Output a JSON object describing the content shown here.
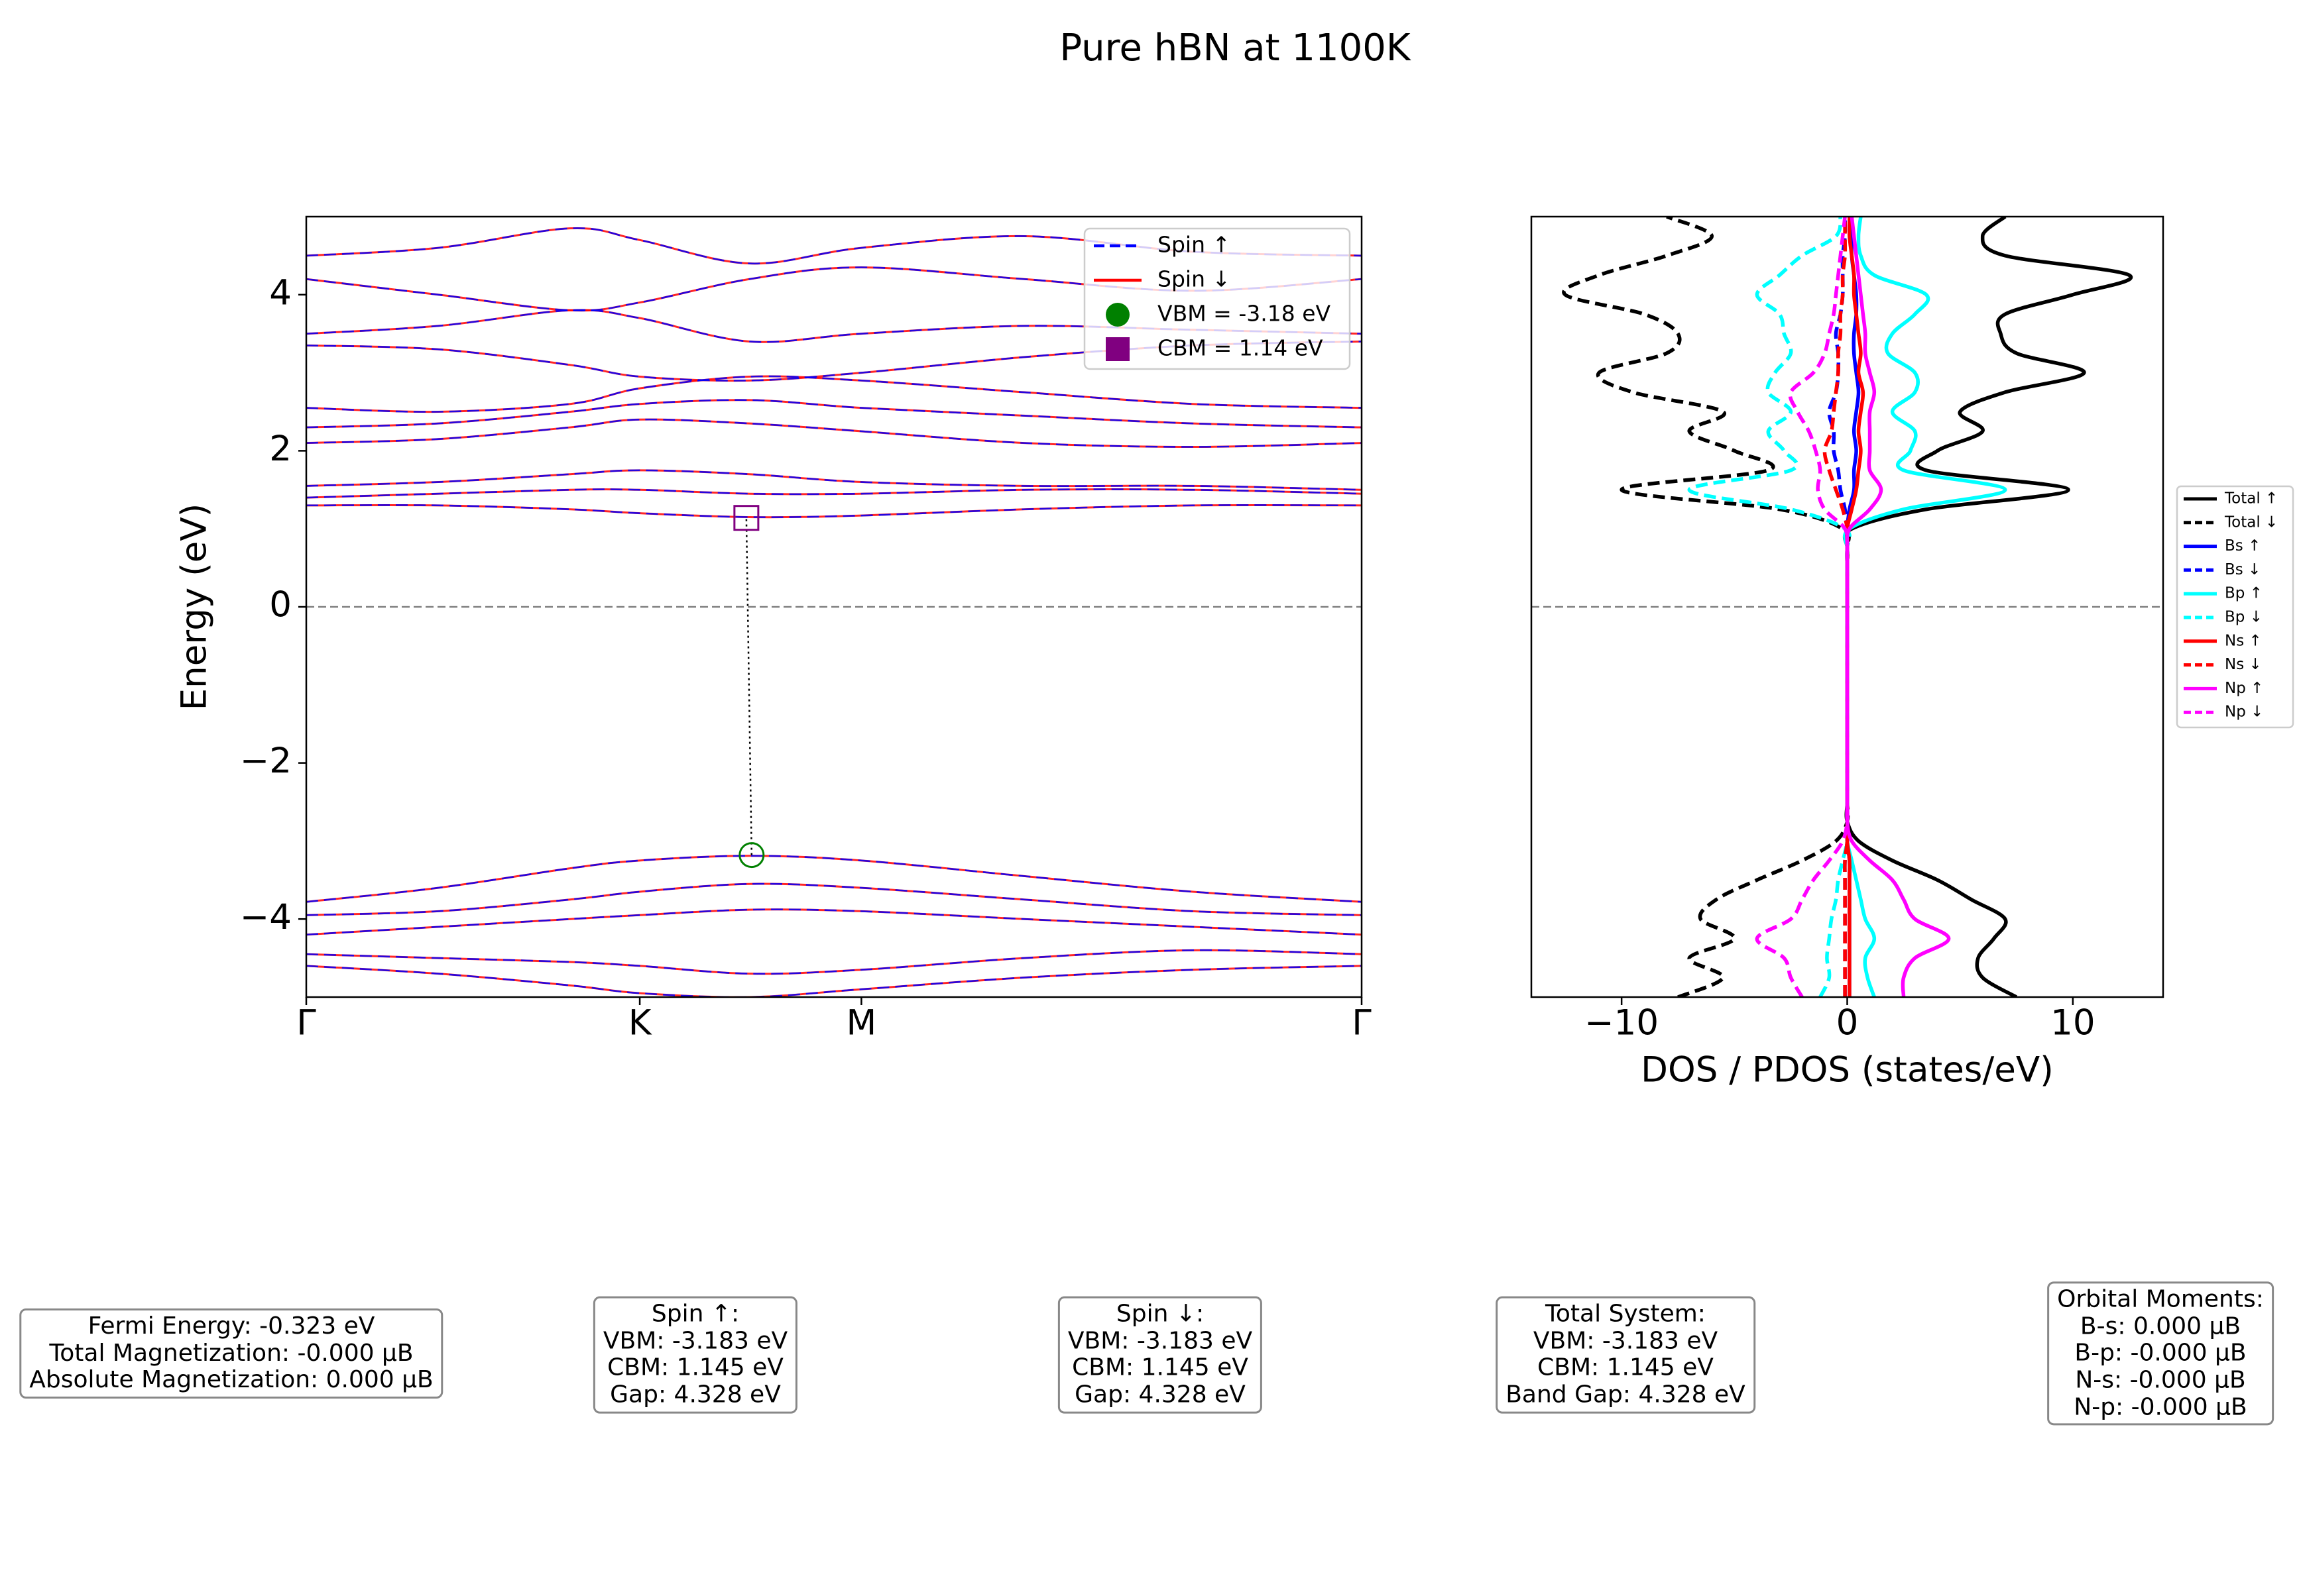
{
  "figure_title": "Pure hBN at 1100K",
  "chart_data": [
    {
      "type": "line",
      "ylabel": "Energy (eV)",
      "xlim": [
        0,
        1
      ],
      "ylim": [
        -5,
        5
      ],
      "xticks": [
        {
          "value": 0,
          "label": "Γ"
        },
        {
          "value": 0.316,
          "label": "K"
        },
        {
          "value": 0.526,
          "label": "M"
        },
        {
          "value": 1,
          "label": "Γ"
        }
      ],
      "yticks": [
        {
          "value": -4,
          "label": "−4"
        },
        {
          "value": -2,
          "label": "−2"
        },
        0,
        2,
        4
      ],
      "hline": 0,
      "legend": "upper right",
      "x": [
        0,
        0.125,
        0.25,
        0.316,
        0.42,
        0.526,
        0.68,
        0.84,
        1
      ],
      "series": [
        {
          "name": "Spin ↑",
          "color": "#0000ff",
          "style": "dashed",
          "values": [
            [
              -3.78,
              -3.6,
              -3.35,
              -3.25,
              -3.19,
              -3.25,
              -3.45,
              -3.65,
              -3.78
            ],
            [
              -3.95,
              -3.9,
              -3.75,
              -3.65,
              -3.55,
              -3.6,
              -3.75,
              -3.9,
              -3.95
            ],
            [
              -4.2,
              -4.1,
              -4.0,
              -3.95,
              -3.88,
              -3.9,
              -4.0,
              -4.1,
              -4.2
            ],
            [
              -4.45,
              -4.5,
              -4.55,
              -4.6,
              -4.7,
              -4.65,
              -4.5,
              -4.4,
              -4.45
            ],
            [
              -4.6,
              -4.7,
              -4.85,
              -4.95,
              -5.0,
              -4.9,
              -4.75,
              -4.65,
              -4.6
            ],
            [
              1.3,
              1.3,
              1.25,
              1.2,
              1.15,
              1.17,
              1.25,
              1.3,
              1.3
            ],
            [
              1.4,
              1.45,
              1.5,
              1.5,
              1.45,
              1.45,
              1.5,
              1.5,
              1.45
            ],
            [
              1.55,
              1.6,
              1.7,
              1.75,
              1.7,
              1.6,
              1.55,
              1.55,
              1.5
            ],
            [
              2.1,
              2.15,
              2.3,
              2.4,
              2.35,
              2.25,
              2.1,
              2.05,
              2.1
            ],
            [
              2.3,
              2.35,
              2.5,
              2.6,
              2.65,
              2.55,
              2.45,
              2.35,
              2.3
            ],
            [
              2.55,
              2.5,
              2.6,
              2.8,
              2.95,
              2.9,
              2.75,
              2.6,
              2.55
            ],
            [
              3.35,
              3.3,
              3.1,
              2.95,
              2.9,
              3.0,
              3.2,
              3.35,
              3.4
            ],
            [
              3.5,
              3.6,
              3.8,
              3.7,
              3.4,
              3.5,
              3.6,
              3.55,
              3.5
            ],
            [
              4.2,
              4.0,
              3.8,
              3.9,
              4.2,
              4.35,
              4.2,
              4.05,
              4.2
            ],
            [
              4.5,
              4.6,
              4.85,
              4.7,
              4.4,
              4.6,
              4.75,
              4.55,
              4.5
            ]
          ]
        },
        {
          "name": "Spin ↓",
          "color": "#ff0000",
          "style": "solid",
          "values": [
            [
              -3.78,
              -3.6,
              -3.35,
              -3.25,
              -3.19,
              -3.25,
              -3.45,
              -3.65,
              -3.78
            ],
            [
              -3.95,
              -3.9,
              -3.75,
              -3.65,
              -3.55,
              -3.6,
              -3.75,
              -3.9,
              -3.95
            ],
            [
              -4.2,
              -4.1,
              -4.0,
              -3.95,
              -3.88,
              -3.9,
              -4.0,
              -4.1,
              -4.2
            ],
            [
              -4.45,
              -4.5,
              -4.55,
              -4.6,
              -4.7,
              -4.65,
              -4.5,
              -4.4,
              -4.45
            ],
            [
              -4.6,
              -4.7,
              -4.85,
              -4.95,
              -5.0,
              -4.9,
              -4.75,
              -4.65,
              -4.6
            ],
            [
              1.3,
              1.3,
              1.25,
              1.2,
              1.15,
              1.17,
              1.25,
              1.3,
              1.3
            ],
            [
              1.4,
              1.45,
              1.5,
              1.5,
              1.45,
              1.45,
              1.5,
              1.5,
              1.45
            ],
            [
              1.55,
              1.6,
              1.7,
              1.75,
              1.7,
              1.6,
              1.55,
              1.55,
              1.5
            ],
            [
              2.1,
              2.15,
              2.3,
              2.4,
              2.35,
              2.25,
              2.1,
              2.05,
              2.1
            ],
            [
              2.3,
              2.35,
              2.5,
              2.6,
              2.65,
              2.55,
              2.45,
              2.35,
              2.3
            ],
            [
              2.55,
              2.5,
              2.6,
              2.8,
              2.95,
              2.9,
              2.75,
              2.6,
              2.55
            ],
            [
              3.35,
              3.3,
              3.1,
              2.95,
              2.9,
              3.0,
              3.2,
              3.35,
              3.4
            ],
            [
              3.5,
              3.6,
              3.8,
              3.7,
              3.4,
              3.5,
              3.6,
              3.55,
              3.5
            ],
            [
              4.2,
              4.0,
              3.8,
              3.9,
              4.2,
              4.35,
              4.2,
              4.05,
              4.2
            ],
            [
              4.5,
              4.6,
              4.85,
              4.7,
              4.4,
              4.6,
              4.75,
              4.55,
              4.5
            ]
          ]
        }
      ],
      "markers": [
        {
          "name": "VBM = -3.18 eV",
          "x": 0.422,
          "y": -3.18,
          "color": "#008000",
          "shape": "circle"
        },
        {
          "name": "CBM = 1.14 eV",
          "x": 0.417,
          "y": 1.14,
          "color": "#800080",
          "shape": "square"
        }
      ]
    },
    {
      "type": "line",
      "orientation": "horizontal",
      "xlabel": "DOS / PDOS (states/eV)",
      "xlim": [
        -14,
        14
      ],
      "ylim": [
        -5,
        5
      ],
      "xticks": [
        {
          "value": -10,
          "label": "−10"
        },
        0,
        10
      ],
      "hline": 0,
      "legend": "outside right",
      "y": [
        -5,
        -4.75,
        -4.5,
        -4.25,
        -4,
        -3.75,
        -3.5,
        -3.25,
        -3,
        -2.75,
        -2.5,
        -2.25,
        -2,
        -1.75,
        -1.5,
        -1.25,
        -1,
        -0.75,
        -0.5,
        -0.25,
        0,
        0.25,
        0.5,
        0.75,
        1,
        1.25,
        1.5,
        1.75,
        2,
        2.25,
        2.5,
        2.75,
        3,
        3.25,
        3.5,
        3.75,
        4,
        4.25,
        4.5,
        4.75,
        5
      ],
      "series": [
        {
          "name": "Total ↑",
          "color": "#000000",
          "style": "solid",
          "values": [
            7.5,
            6,
            5.8,
            6.5,
            7,
            5.5,
            4,
            2,
            0.5,
            0,
            0,
            0,
            0,
            0,
            0,
            0,
            0,
            0,
            0,
            0,
            0,
            0,
            0,
            0,
            0.2,
            3.5,
            9.8,
            3.5,
            4,
            6,
            5,
            7,
            10.5,
            7.5,
            6.8,
            7,
            10,
            12.5,
            7,
            6,
            7
          ]
        },
        {
          "name": "Total ↓",
          "color": "#000000",
          "style": "dashed",
          "values": [
            -7.5,
            -5.5,
            -7,
            -5,
            -6.5,
            -5.8,
            -4,
            -2,
            -0.5,
            0,
            0,
            0,
            0,
            0,
            0,
            0,
            0,
            0,
            0,
            0,
            0,
            0,
            0,
            0,
            -0.2,
            -3,
            -10,
            -3.5,
            -5,
            -7,
            -5.5,
            -9.5,
            -11,
            -8,
            -7.5,
            -9,
            -12.5,
            -11,
            -8,
            -6,
            -8
          ]
        },
        {
          "name": "Bs ↑",
          "color": "#0000ff",
          "style": "solid",
          "values": [
            0.1,
            0.1,
            0.1,
            0.1,
            0.1,
            0.1,
            0.1,
            0.1,
            0,
            0,
            0,
            0,
            0,
            0,
            0,
            0,
            0,
            0,
            0,
            0,
            0,
            0,
            0,
            0,
            0,
            0.1,
            0.3,
            0.3,
            0.4,
            0.3,
            0.4,
            0.5,
            0.4,
            0.3,
            0.3,
            0.4,
            0.4,
            0.3,
            0.2,
            0.2,
            0.2
          ]
        },
        {
          "name": "Bs ↓",
          "color": "#0000ff",
          "style": "dashed",
          "values": [
            -0.1,
            -0.1,
            -0.1,
            -0.1,
            -0.1,
            -0.1,
            -0.1,
            -0.1,
            0,
            0,
            0,
            0,
            0,
            0,
            0,
            0,
            0,
            0,
            0,
            0,
            0,
            0,
            0,
            0,
            0,
            -0.1,
            -0.3,
            -0.4,
            -0.6,
            -0.6,
            -0.8,
            -0.5,
            -0.4,
            -0.4,
            -0.5,
            -0.3,
            -0.2,
            -0.2,
            -0.2,
            -0.1,
            -0.1
          ]
        },
        {
          "name": "Bp ↑",
          "color": "#00ffff",
          "style": "solid",
          "values": [
            1.2,
            0.9,
            0.8,
            1.2,
            0.8,
            0.6,
            0.4,
            0.2,
            0,
            0,
            0,
            0,
            0,
            0,
            0,
            0,
            0,
            0,
            0,
            0,
            0,
            0,
            0,
            0,
            0.1,
            2.5,
            7,
            2.5,
            2.8,
            3,
            2,
            3,
            3,
            1.8,
            2,
            3,
            3.5,
            1.2,
            0.6,
            0.5,
            0.6
          ]
        },
        {
          "name": "Bp ↓",
          "color": "#00ffff",
          "style": "dashed",
          "values": [
            -1.2,
            -0.8,
            -0.9,
            -0.8,
            -0.7,
            -0.5,
            -0.4,
            -0.2,
            0,
            0,
            0,
            0,
            0,
            0,
            0,
            0,
            0,
            0,
            0,
            0,
            0,
            0,
            0,
            0,
            -0.1,
            -2.5,
            -7,
            -2.5,
            -2.8,
            -3.5,
            -2.5,
            -3.5,
            -3.2,
            -2.5,
            -2.8,
            -3,
            -4,
            -3,
            -2,
            -0.5,
            -0.3
          ]
        },
        {
          "name": "Ns ↑",
          "color": "#ff0000",
          "style": "solid",
          "values": [
            0.1,
            0.1,
            0.1,
            0.1,
            0.1,
            0.1,
            0.1,
            0.1,
            0,
            0,
            0,
            0,
            0,
            0,
            0,
            0,
            0,
            0,
            0,
            0,
            0,
            0,
            0,
            0,
            0,
            0.2,
            0.4,
            0.5,
            0.6,
            0.5,
            0.6,
            0.7,
            0.5,
            0.6,
            0.5,
            0.4,
            0.3,
            0.3,
            0.2,
            0.1,
            0.1
          ]
        },
        {
          "name": "Ns ↓",
          "color": "#ff0000",
          "style": "dashed",
          "values": [
            -0.1,
            -0.1,
            -0.1,
            -0.1,
            -0.1,
            -0.1,
            -0.1,
            -0.1,
            0,
            0,
            0,
            0,
            0,
            0,
            0,
            0,
            0,
            0,
            0,
            0,
            0,
            0,
            0,
            0,
            0,
            -0.2,
            -0.5,
            -0.8,
            -1,
            -0.7,
            -0.6,
            -0.5,
            -0.4,
            -0.4,
            -0.3,
            -0.3,
            -0.2,
            -0.2,
            -0.1,
            -0.1,
            -0.1
          ]
        },
        {
          "name": "Np ↑",
          "color": "#ff00ff",
          "style": "solid",
          "values": [
            2.5,
            2.5,
            3,
            4.5,
            3,
            2.5,
            2,
            1,
            0.2,
            0,
            0,
            0,
            0,
            0,
            0,
            0,
            0,
            0,
            0,
            0,
            0,
            0,
            0,
            0,
            0.1,
            1,
            1.5,
            1,
            1,
            1,
            1,
            1.2,
            1,
            0.8,
            0.8,
            0.7,
            0.6,
            0.5,
            0.4,
            0.3,
            0.2
          ]
        },
        {
          "name": "Np ↓",
          "color": "#ff00ff",
          "style": "dashed",
          "values": [
            -2,
            -2.5,
            -2.8,
            -4,
            -2.5,
            -2,
            -1.5,
            -0.8,
            -0.2,
            0,
            0,
            0,
            0,
            0,
            0,
            0,
            0,
            0,
            0,
            0,
            0,
            0,
            0,
            0,
            -0.1,
            -1,
            -1.3,
            -1.2,
            -1.4,
            -1.7,
            -2.2,
            -2.5,
            -1.5,
            -1,
            -0.8,
            -0.6,
            -0.5,
            -0.4,
            -0.3,
            -0.2,
            -0.1
          ]
        }
      ]
    }
  ],
  "info_boxes": [
    {
      "lines": [
        "Fermi Energy: -0.323 eV",
        "Total Magnetization: -0.000 µB",
        "Absolute Magnetization: 0.000 µB"
      ]
    },
    {
      "lines": [
        "Spin ↑:",
        "VBM: -3.183 eV",
        "CBM: 1.145 eV",
        "Gap: 4.328 eV"
      ]
    },
    {
      "lines": [
        "Spin ↓:",
        "VBM: -3.183 eV",
        "CBM: 1.145 eV",
        "Gap: 4.328 eV"
      ]
    },
    {
      "lines": [
        "Total System:",
        "VBM: -3.183 eV",
        "CBM: 1.145 eV",
        "Band Gap: 4.328 eV"
      ]
    },
    {
      "lines": [
        "Orbital Moments:",
        "B-s: 0.000 µB",
        "B-p: -0.000 µB",
        "N-s: -0.000 µB",
        "N-p: -0.000 µB"
      ]
    }
  ]
}
